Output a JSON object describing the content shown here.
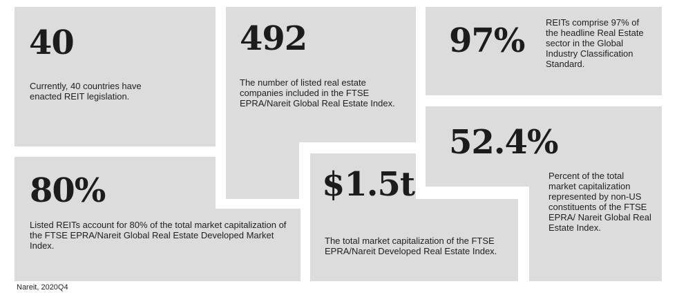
{
  "tiles": [
    {
      "id": "countries",
      "stat": "40",
      "text": "Currently, 40 countries have enacted REIT legislation."
    },
    {
      "id": "companies",
      "stat": "492",
      "text": "The number of listed real estate companies included in the FTSE EPRA/Nareit Global Real Estate Index."
    },
    {
      "id": "gics",
      "stat": "97%",
      "text": "REITs comprise 97% of the headline Real Estate sector in the Global Industry Classification Standard."
    },
    {
      "id": "share",
      "stat": "80%",
      "text": "Listed REITs account for 80% of the total market capitalization of the FTSE EPRA/Nareit Global Real Estate Developed Market Index."
    },
    {
      "id": "marketcap",
      "stat": "$1.5t",
      "text": "The total market capitalization of the FTSE EPRA/Nareit Developed Real Estate Index."
    },
    {
      "id": "nonus",
      "stat": "52.4%",
      "text": "Percent of the total market capitalization represented by non-US constituents of the FTSE EPRA/ Nareit Global Real Estate Index."
    }
  ],
  "source": "Nareit, 2020Q4",
  "colors": {
    "tile_background": "#dcdcdc",
    "text": "#1e1e1e",
    "page_background": "#ffffff"
  }
}
